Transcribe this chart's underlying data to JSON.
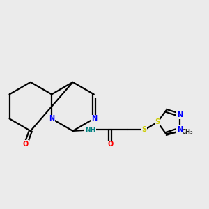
{
  "bg_color": "#ebebeb",
  "bond_color": "#000000",
  "N_color": "#0000ff",
  "O_color": "#ff0000",
  "S_color": "#cccc00",
  "NH_color": "#008080",
  "line_width": 1.6,
  "fig_size": [
    3.0,
    3.0
  ],
  "dpi": 100,
  "xlim": [
    0,
    10
  ],
  "ylim": [
    0,
    10
  ]
}
